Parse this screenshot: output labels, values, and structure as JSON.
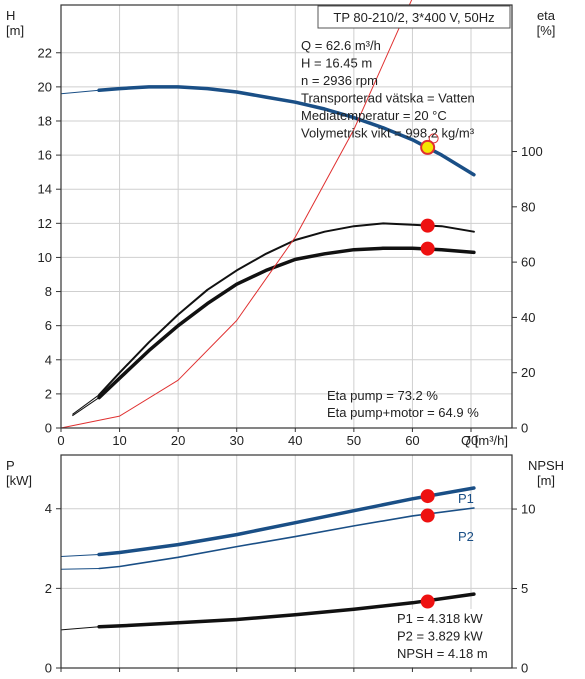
{
  "chart_data": [
    {
      "type": "line",
      "title": "TP 80-210/2, 3*400 V, 50Hz",
      "xlabel": "Q [m³/h]",
      "ylabel": "H\n[m]",
      "y2label": "eta\n[%]",
      "xlim": [
        0,
        77
      ],
      "ylim": [
        0,
        24.8
      ],
      "y2lim": [
        0,
        153
      ],
      "xticks": [
        0,
        10,
        20,
        30,
        40,
        50,
        60,
        70
      ],
      "yticks": [
        0,
        2,
        4,
        6,
        8,
        10,
        12,
        14,
        16,
        18,
        20,
        22
      ],
      "y2ticks": [
        0,
        20,
        40,
        60,
        80,
        100
      ],
      "grid": true,
      "info_lines": [
        "Q = 62.6 m³/h",
        "H = 16.45 m",
        "n = 2936 rpm",
        "Transporterad vätska = Vatten",
        "Mediatemperatur = 20 °C",
        "Volymetrisk vikt = 998.2 kg/m³"
      ],
      "eta_lines": [
        "Eta pump = 73.2 %",
        "Eta pump+motor = 64.9 %"
      ],
      "series": [
        {
          "axis": "y",
          "color": "#1a4f86",
          "width": 3.5,
          "x": [
            6.5,
            10,
            15,
            20,
            25,
            30,
            35,
            40,
            45,
            50,
            55,
            60,
            65,
            70.5
          ],
          "y": [
            19.8,
            19.9,
            20.0,
            20.0,
            19.9,
            19.7,
            19.4,
            19.1,
            18.7,
            18.2,
            17.6,
            16.9,
            16.0,
            14.85
          ]
        },
        {
          "axis": "y",
          "color": "#1a4f86",
          "width": 1,
          "x": [
            0,
            6.5
          ],
          "y": [
            19.6,
            19.8
          ]
        },
        {
          "axis": "y2",
          "color": "#111111",
          "width": 2,
          "x": [
            6.5,
            10,
            15,
            20,
            25,
            30,
            35,
            40,
            45,
            50,
            55,
            60,
            65,
            70.5
          ],
          "y": [
            12,
            20,
            31,
            41,
            50,
            57,
            63,
            68,
            71,
            73,
            74,
            73.5,
            73,
            71
          ]
        },
        {
          "axis": "y2",
          "color": "#111111",
          "width": 3.5,
          "x": [
            6.5,
            10,
            15,
            20,
            25,
            30,
            35,
            40,
            45,
            50,
            55,
            60,
            65,
            70.5
          ],
          "y": [
            11,
            18,
            28,
            37,
            45,
            52,
            57,
            61,
            63,
            64.5,
            65,
            65,
            64.5,
            63.5
          ]
        },
        {
          "axis": "y2",
          "color": "#111111",
          "width": 1,
          "x": [
            2,
            6.5
          ],
          "y": [
            5,
            12
          ]
        },
        {
          "axis": "y2",
          "color": "#111111",
          "width": 1,
          "x": [
            2,
            6.5
          ],
          "y": [
            4.5,
            11
          ]
        },
        {
          "axis": "y",
          "color": "#e03030",
          "width": 1,
          "x": [
            0,
            10,
            20,
            30,
            40,
            50,
            60,
            62.6
          ],
          "y": [
            0,
            0.7,
            2.8,
            6.3,
            11.2,
            17.5,
            25.2,
            27.4
          ]
        }
      ],
      "points": [
        {
          "axis": "y",
          "x": 62.6,
          "y": 16.45,
          "type": "duty",
          "color": "#f5e600"
        },
        {
          "axis": "y2",
          "x": 62.6,
          "y": 73.2,
          "color": "#ee1111"
        },
        {
          "axis": "y2",
          "x": 62.6,
          "y": 64.9,
          "color": "#ee1111"
        }
      ]
    },
    {
      "type": "line",
      "ylabel": "P\n[kW]",
      "y2label": "NPSH\n[m]",
      "xlim": [
        0,
        77
      ],
      "ylim": [
        0,
        5.35
      ],
      "y2lim": [
        0,
        13.4
      ],
      "yticks": [
        0,
        2,
        4
      ],
      "y2ticks": [
        0,
        5,
        10
      ],
      "grid": true,
      "info_lines": [
        "P1 = 4.318 kW",
        "P2 = 3.829 kW",
        "NPSH = 4.18 m"
      ],
      "series": [
        {
          "name": "P1",
          "axis": "y",
          "color": "#1a4f86",
          "width": 3.5,
          "x": [
            6.5,
            10,
            20,
            30,
            40,
            50,
            60,
            70.5
          ],
          "y": [
            2.85,
            2.9,
            3.1,
            3.35,
            3.65,
            3.95,
            4.25,
            4.52
          ]
        },
        {
          "axis": "y",
          "color": "#1a4f86",
          "width": 1,
          "x": [
            0,
            6.5
          ],
          "y": [
            2.8,
            2.85
          ]
        },
        {
          "name": "P2",
          "axis": "y",
          "color": "#1a4f86",
          "width": 1.6,
          "x": [
            6.5,
            10,
            20,
            30,
            40,
            50,
            60,
            70.5
          ],
          "y": [
            2.5,
            2.55,
            2.78,
            3.05,
            3.3,
            3.57,
            3.82,
            4.02
          ]
        },
        {
          "axis": "y",
          "color": "#1a4f86",
          "width": 1,
          "x": [
            0,
            6.5
          ],
          "y": [
            2.48,
            2.5
          ]
        },
        {
          "axis": "y2",
          "color": "#111111",
          "width": 3.5,
          "x": [
            6.5,
            10,
            20,
            30,
            40,
            50,
            60,
            70.5
          ],
          "y": [
            2.6,
            2.65,
            2.85,
            3.05,
            3.35,
            3.7,
            4.1,
            4.65
          ]
        },
        {
          "axis": "y2",
          "color": "#111111",
          "width": 1,
          "x": [
            0,
            6.5
          ],
          "y": [
            2.4,
            2.6
          ]
        }
      ],
      "points": [
        {
          "axis": "y",
          "x": 62.6,
          "y": 4.318,
          "color": "#ee1111"
        },
        {
          "axis": "y",
          "x": 62.6,
          "y": 3.829,
          "color": "#ee1111"
        },
        {
          "axis": "y2",
          "x": 62.6,
          "y": 4.18,
          "color": "#ee1111"
        }
      ]
    }
  ]
}
